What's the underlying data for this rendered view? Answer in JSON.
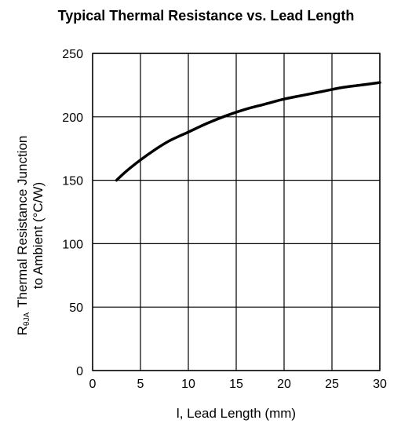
{
  "chart_data": {
    "type": "line",
    "title": "Typical Thermal Resistance vs. Lead Length",
    "xlabel": "l, Lead Length (mm)",
    "ylabel": {
      "line1_symbol": "R",
      "line1_subscript": "θJA",
      "line1_rest": "Thermal Resistance Junction",
      "line2": "to Ambient (°C/W)"
    },
    "xlim": [
      0,
      30
    ],
    "ylim": [
      0,
      250
    ],
    "xticks": [
      "0",
      "5",
      "10",
      "15",
      "20",
      "25",
      "30"
    ],
    "yticks": [
      "0",
      "50",
      "100",
      "150",
      "200",
      "250"
    ],
    "grid": true,
    "series": [
      {
        "x": [
          2.5,
          3.5,
          5,
          6.5,
          8,
          10,
          12,
          14,
          16,
          18,
          20,
          22,
          24,
          26,
          28,
          30
        ],
        "y": [
          150,
          157,
          166,
          174,
          181,
          188,
          195,
          201,
          206,
          210,
          214,
          217,
          220,
          223,
          225,
          227
        ]
      }
    ]
  }
}
